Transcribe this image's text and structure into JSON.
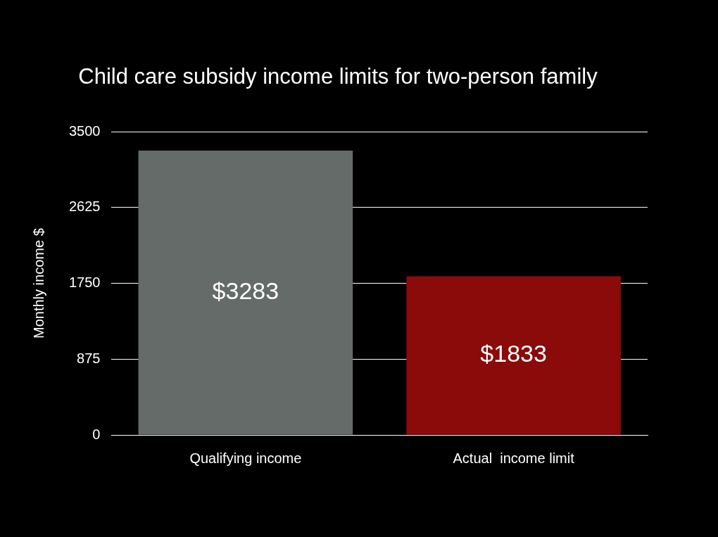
{
  "chart_data": {
    "type": "bar",
    "title": "Child care subsidy income limits for two-person family",
    "y_label": "Monthly income $",
    "categories": [
      "Qualifying income",
      "Actual  income limit"
    ],
    "values": [
      3283,
      1833
    ],
    "value_labels": [
      "$3283",
      "$1833"
    ],
    "colors": [
      "#656b68",
      "#8b0a0a"
    ],
    "ylim": [
      0,
      3500
    ],
    "yticks": [
      0,
      875,
      1750,
      2625,
      3500
    ],
    "grid": true,
    "data_labels": true
  }
}
